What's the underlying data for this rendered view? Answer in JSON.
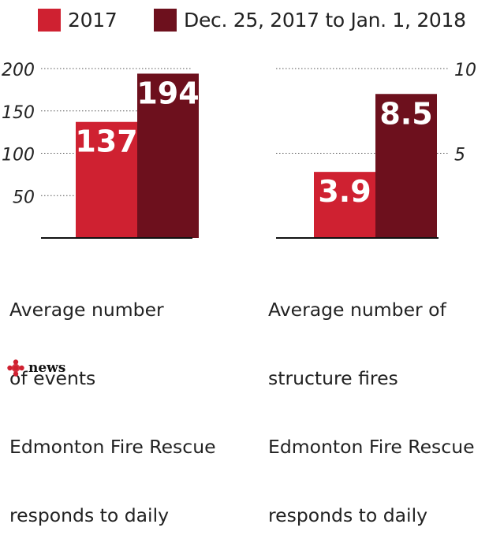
{
  "colors": {
    "series_2017": "#cf2131",
    "series_holiday": "#6d101d",
    "text": "#222222",
    "grid": "#555555"
  },
  "legend": [
    {
      "label": "2017",
      "color": "#cf2131"
    },
    {
      "label": "Dec. 25, 2017 to Jan. 1, 2018",
      "color": "#6d101d"
    }
  ],
  "chart_data": [
    {
      "type": "bar",
      "categories": [
        "2017",
        "Dec. 25, 2017 to Jan. 1, 2018"
      ],
      "values": [
        137,
        194
      ],
      "value_labels": [
        "137",
        "194"
      ],
      "ylim": [
        0,
        200
      ],
      "yticks": [
        50,
        100,
        150,
        200
      ],
      "ytick_labels": [
        "50",
        "100",
        "150",
        "200"
      ],
      "axis_side": "left",
      "grid": true,
      "caption": [
        "Average number",
        "of events",
        "Edmonton Fire Rescue",
        "responds to daily"
      ]
    },
    {
      "type": "bar",
      "categories": [
        "2017",
        "Dec. 25, 2017 to Jan. 1, 2018"
      ],
      "values": [
        3.9,
        8.5
      ],
      "value_labels": [
        "3.9",
        "8.5"
      ],
      "ylim": [
        0,
        10
      ],
      "yticks": [
        5,
        10
      ],
      "ytick_labels": [
        "5",
        "10"
      ],
      "axis_side": "right",
      "grid": true,
      "caption": [
        "Average number of",
        "structure fires",
        "Edmonton Fire Rescue",
        "responds to daily"
      ]
    }
  ],
  "logo": {
    "text": "news",
    "icon": "cbc-gem-icon"
  }
}
